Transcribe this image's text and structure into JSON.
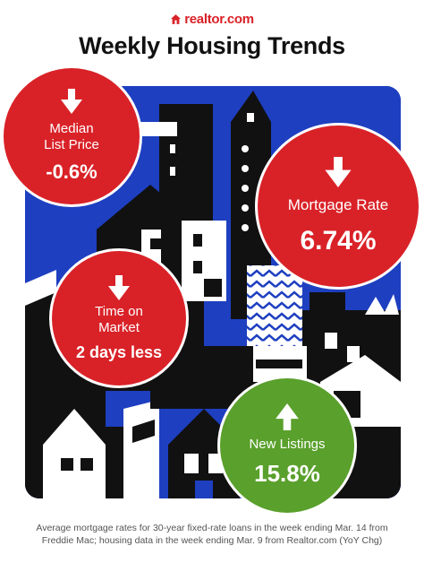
{
  "brand": {
    "logo_text": "realtor.com",
    "accent": "#d92228"
  },
  "title": "Weekly Housing Trends",
  "stats": [
    {
      "label_lines": [
        "Median",
        "List Price"
      ],
      "value": "-0.6%",
      "direction": "down",
      "color": "#d92228"
    },
    {
      "label_lines": [
        "Mortgage Rate"
      ],
      "value": "6.74%",
      "direction": "down",
      "color": "#d92228"
    },
    {
      "label_lines": [
        "Time on",
        "Market"
      ],
      "value": "2 days less",
      "direction": "down",
      "color": "#d92228"
    },
    {
      "label_lines": [
        "New Listings"
      ],
      "value": "15.8%",
      "direction": "up",
      "color": "#5aa02c"
    }
  ],
  "footnote": {
    "line1": "Average mortgage rates for 30-year fixed-rate loans in the week ending Mar. 14 from",
    "line2": "Freddie Mac; housing data in the week ending Mar. 9 from Realtor.com (YoY Chg)"
  },
  "colors": {
    "scene_background": "#1e3fc0",
    "building_dark": "#111111",
    "up_color": "#5aa02c"
  }
}
